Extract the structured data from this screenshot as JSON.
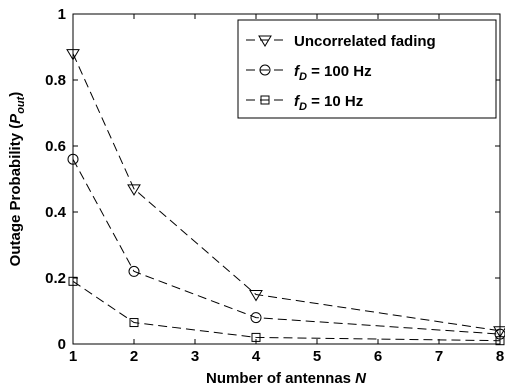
{
  "chart_data": {
    "type": "line",
    "x": [
      1,
      2,
      4,
      8
    ],
    "xlabel": {
      "main": "Number of antennas ",
      "italic": "N"
    },
    "ylabel": {
      "main": "Outage Probability (",
      "var": "P",
      "sub": "out",
      "close": ")"
    },
    "xlim": [
      1,
      8
    ],
    "ylim": [
      0,
      1
    ],
    "xticks": [
      "1",
      "2",
      "3",
      "4",
      "5",
      "6",
      "7",
      "8"
    ],
    "yticks": [
      "0",
      "0.2",
      "0.4",
      "0.6",
      "0.8",
      "1"
    ],
    "grid": false,
    "legend_position": "top-right",
    "series": [
      {
        "name": "Uncorrelated fading",
        "label": {
          "main": "Uncorrelated fading"
        },
        "marker": "triangle-down",
        "values": [
          0.88,
          0.47,
          0.15,
          0.04
        ]
      },
      {
        "name": "f_D = 100 Hz",
        "label": {
          "var": "f",
          "sub": "D",
          "rest": " = 100 Hz"
        },
        "marker": "circle",
        "values": [
          0.56,
          0.22,
          0.08,
          0.03
        ]
      },
      {
        "name": "f_D = 10 Hz",
        "label": {
          "var": "f",
          "sub": "D",
          "rest": " = 10 Hz"
        },
        "marker": "square",
        "values": [
          0.19,
          0.065,
          0.02,
          0.01
        ]
      }
    ]
  }
}
